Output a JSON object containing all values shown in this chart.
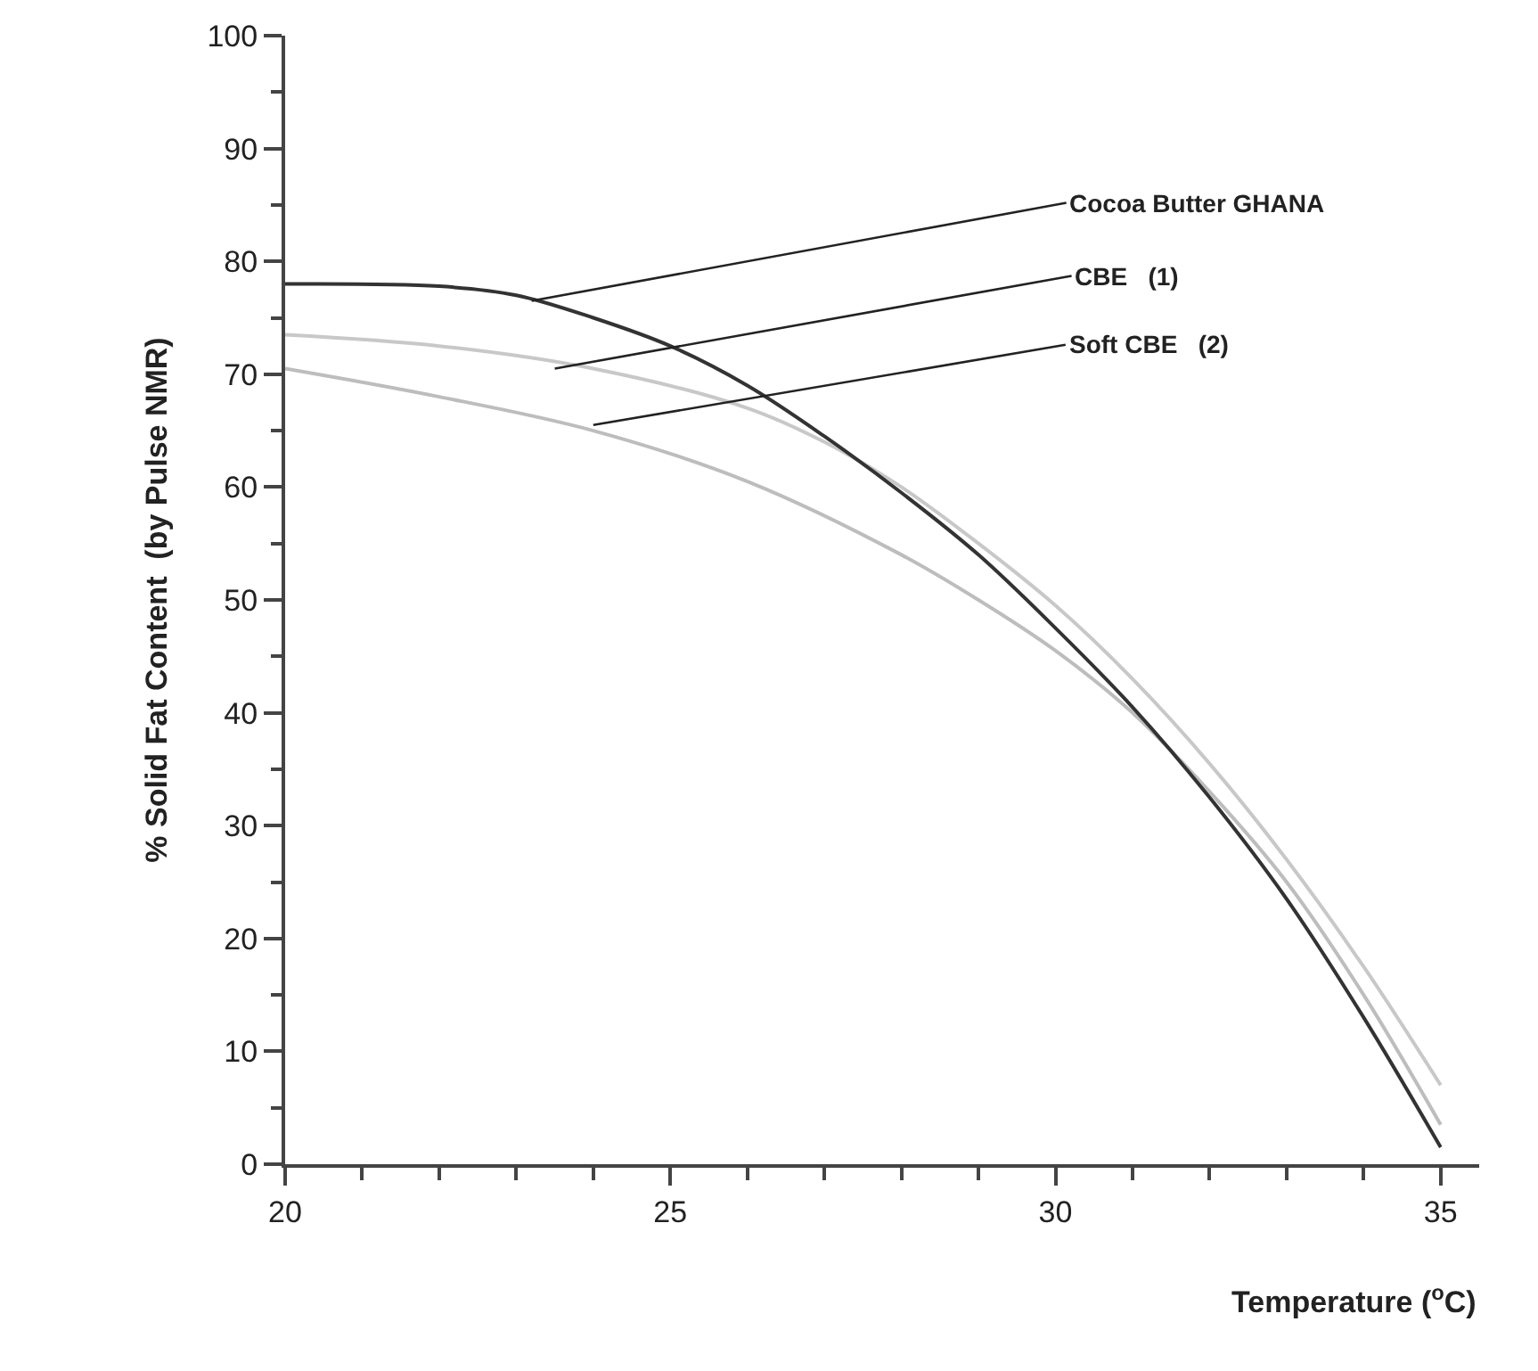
{
  "chart_data": {
    "type": "line",
    "xlabel": "Temperature ($^{o}$C)",
    "ylabel": "% Solid Fat Content  (by Pulse NMR)",
    "xlim": [
      20,
      35.5
    ],
    "xticks": [
      20,
      25,
      30,
      35
    ],
    "ylim": [
      0,
      100
    ],
    "yticks": [
      0,
      10,
      20,
      30,
      40,
      50,
      60,
      70,
      80,
      90,
      100
    ],
    "legend": false,
    "marker": "none",
    "line_style": "solid",
    "series": [
      {
        "color": "#c8c8c8",
        "x": [
          20,
          22,
          24,
          26,
          27,
          28,
          29,
          30,
          31,
          32,
          33,
          34,
          35
        ],
        "values": [
          73.5,
          72.5,
          70.5,
          67,
          64,
          60,
          55,
          49.5,
          43,
          35.5,
          27,
          17.5,
          7
        ]
      },
      {
        "color": "#bdbdbd",
        "x": [
          20,
          22,
          24,
          26,
          28,
          29,
          30,
          31,
          32,
          33,
          34,
          35
        ],
        "values": [
          70.5,
          68,
          65,
          60.5,
          54,
          50,
          45.5,
          40,
          33,
          25,
          15,
          3.5
        ]
      },
      {
        "color": "#333333",
        "x": [
          20,
          22,
          23,
          24,
          25,
          26,
          27,
          28,
          29,
          30,
          31,
          32,
          33,
          34,
          35
        ],
        "values": [
          78,
          77.8,
          77,
          75,
          72.5,
          69,
          64.5,
          59.5,
          54,
          47.5,
          40.5,
          32.5,
          23.5,
          13,
          1.5
        ]
      }
    ],
    "annotations": [
      {
        "text": "Cocoa Butter GHANA",
        "x": 23.2,
        "y": 76.5
      },
      {
        "text": "CBE   (1)",
        "x": 23.5,
        "y": 70.5
      },
      {
        "text": "Soft CBE   (2)",
        "x": 24,
        "y": 65.5
      }
    ]
  }
}
